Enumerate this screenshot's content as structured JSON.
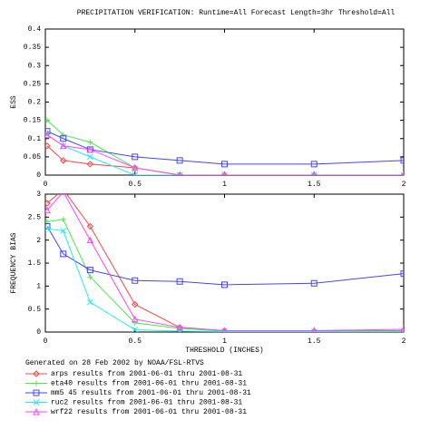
{
  "chart_data": [
    {
      "type": "line",
      "title": "PRECIPITATION VERIFICATION:   Runtime=All   Forecast Length=3hr   Threshold=All",
      "ylabel": "ESS",
      "x": [
        0.01,
        0.1,
        0.25,
        0.5,
        0.75,
        1,
        1.5,
        2
      ],
      "xlim": [
        0,
        2
      ],
      "xticks": [
        0,
        0.5,
        1,
        1.5,
        2
      ],
      "ylim": [
        0,
        0.4
      ],
      "yticks": [
        0,
        0.05,
        0.1,
        0.15,
        0.2,
        0.25,
        0.3,
        0.35,
        0.4
      ],
      "series": [
        {
          "color": "#ff4444",
          "marker": "diamond",
          "values": [
            0.08,
            0.04,
            0.03,
            0.02,
            0,
            0,
            0,
            0
          ]
        },
        {
          "color": "#44ee44",
          "marker": "plus",
          "values": [
            0.15,
            0.11,
            0.09,
            0.02,
            0,
            0,
            0,
            0
          ]
        },
        {
          "color": "#4444ff",
          "marker": "square",
          "values": [
            0.12,
            0.1,
            0.07,
            0.05,
            0.04,
            0.03,
            0.03,
            0.04
          ]
        },
        {
          "color": "#22eeee",
          "marker": "x",
          "values": [
            0.11,
            0.08,
            0.05,
            0,
            0,
            0,
            0,
            0
          ]
        },
        {
          "color": "#ff44ff",
          "marker": "triangle",
          "values": [
            0.11,
            0.08,
            0.07,
            0.02,
            0,
            0,
            0,
            0
          ]
        }
      ]
    },
    {
      "type": "line",
      "ylabel": "FREQUENCY BIAS",
      "xlabel": "THRESHOLD (INCHES)",
      "footer": "Generated on 28 Feb 2002 by NOAA/FSL-RTVS",
      "x": [
        0.01,
        0.1,
        0.25,
        0.5,
        0.75,
        1,
        1.5,
        2
      ],
      "xlim": [
        0,
        2
      ],
      "xticks": [
        0,
        0.5,
        1,
        1.5,
        2
      ],
      "ylim": [
        0,
        3
      ],
      "yticks": [
        0,
        0.5,
        1,
        1.5,
        2,
        2.5,
        3
      ],
      "series": [
        {
          "name": "arps results from 2001-06-01 thru 2001-08-31",
          "color": "#ff4444",
          "marker": "diamond",
          "values": [
            2.8,
            3.1,
            2.3,
            0.6,
            0.1,
            0.03,
            0.02,
            0.03
          ]
        },
        {
          "name": "eta40 results from 2001-06-01 thru 2001-08-31",
          "color": "#44ee44",
          "marker": "plus",
          "values": [
            2.4,
            2.45,
            1.2,
            0.2,
            0.08,
            0.02,
            0.01,
            0.02
          ]
        },
        {
          "name": "mm5 45 results from 2001-06-01 thru 2001-08-31",
          "color": "#4444ff",
          "marker": "square",
          "values": [
            2.3,
            1.7,
            1.35,
            1.12,
            1.1,
            1.03,
            1.06,
            1.27
          ]
        },
        {
          "name": "ruc2 results from 2001-06-01 thru 2001-08-31",
          "color": "#22eeee",
          "marker": "x",
          "values": [
            2.25,
            2.2,
            0.65,
            0.05,
            0.02,
            0.01,
            0.01,
            0.01
          ]
        },
        {
          "name": "wrf22 results from 2001-06-01 thru 2001-08-31",
          "color": "#ff44ff",
          "marker": "triangle",
          "values": [
            2.65,
            3.05,
            2.0,
            0.28,
            0.1,
            0.03,
            0.03,
            0.06
          ]
        }
      ]
    }
  ]
}
